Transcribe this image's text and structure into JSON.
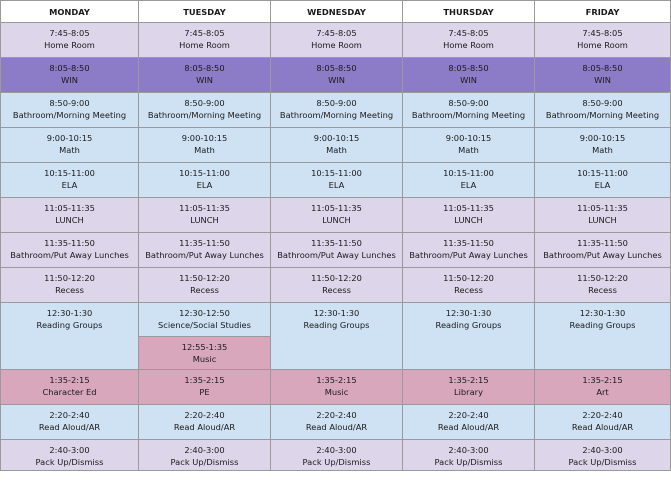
{
  "days": [
    "MONDAY",
    "TUESDAY",
    "WEDNESDAY",
    "THURSDAY",
    "FRIDAY"
  ],
  "rows": [
    {
      "key": "r0",
      "class": "lav",
      "cells": [
        [
          "7:45-8:05",
          "Home Room"
        ],
        [
          "7:45-8:05",
          "Home Room"
        ],
        [
          "7:45-8:05",
          "Home Room"
        ],
        [
          "7:45-8:05",
          "Home Room"
        ],
        [
          "7:45-8:05",
          "Home Room"
        ]
      ]
    },
    {
      "key": "r1",
      "class": "win",
      "cells": [
        [
          "8:05-8:50",
          "WIN"
        ],
        [
          "8:05-8:50",
          "WIN"
        ],
        [
          "8:05-8:50",
          "WIN"
        ],
        [
          "8:05-8:50",
          "WIN"
        ],
        [
          "8:05-8:50",
          "WIN"
        ]
      ]
    },
    {
      "key": "r2",
      "class": "blue",
      "cells": [
        [
          "8:50-9:00",
          "Bathroom/Morning Meeting"
        ],
        [
          "8:50-9:00",
          "Bathroom/Morning Meeting"
        ],
        [
          "8:50-9:00",
          "Bathroom/Morning Meeting"
        ],
        [
          "8:50-9:00",
          "Bathroom/Morning Meeting"
        ],
        [
          "8:50-9:00",
          "Bathroom/Morning Meeting"
        ]
      ]
    },
    {
      "key": "r3",
      "class": "blue",
      "cells": [
        [
          "9:00-10:15",
          "Math"
        ],
        [
          "9:00-10:15",
          "Math"
        ],
        [
          "9:00-10:15",
          "Math"
        ],
        [
          "9:00-10:15",
          "Math"
        ],
        [
          "9:00-10:15",
          "Math"
        ]
      ]
    },
    {
      "key": "r4",
      "class": "blue",
      "cells": [
        [
          "10:15-11:00",
          "ELA"
        ],
        [
          "10:15-11:00",
          "ELA"
        ],
        [
          "10:15-11:00",
          "ELA"
        ],
        [
          "10:15-11:00",
          "ELA"
        ],
        [
          "10:15-11:00",
          "ELA"
        ]
      ]
    },
    {
      "key": "r5",
      "class": "lav",
      "cells": [
        [
          "11:05-11:35",
          "LUNCH"
        ],
        [
          "11:05-11:35",
          "LUNCH"
        ],
        [
          "11:05-11:35",
          "LUNCH"
        ],
        [
          "11:05-11:35",
          "LUNCH"
        ],
        [
          "11:05-11:35",
          "LUNCH"
        ]
      ]
    },
    {
      "key": "r6",
      "class": "lav",
      "cells": [
        [
          "11:35-11:50",
          "Bathroom/Put Away Lunches"
        ],
        [
          "11:35-11:50",
          "Bathroom/Put Away Lunches"
        ],
        [
          "11:35-11:50",
          "Bathroom/Put Away Lunches"
        ],
        [
          "11:35-11:50",
          "Bathroom/Put Away Lunches"
        ],
        [
          "11:35-11:50",
          "Bathroom/Put Away Lunches"
        ]
      ]
    },
    {
      "key": "r7",
      "class": "lav",
      "cells": [
        [
          "11:50-12:20",
          "Recess"
        ],
        [
          "11:50-12:20",
          "Recess"
        ],
        [
          "11:50-12:20",
          "Recess"
        ],
        [
          "11:50-12:20",
          "Recess"
        ],
        [
          "11:50-12:20",
          "Recess"
        ]
      ]
    }
  ],
  "reading": {
    "monday": [
      "12:30-1:30",
      "Reading Groups"
    ],
    "tuesday_a": [
      "12:30-12:50",
      "Science/Social Studies"
    ],
    "tuesday_b": [
      "12:55-1:35",
      "Music"
    ],
    "wednesday": [
      "12:30-1:30",
      "Reading Groups"
    ],
    "thursday": [
      "12:30-1:30",
      "Reading Groups"
    ],
    "friday": [
      "12:30-1:30",
      "Reading Groups"
    ]
  },
  "specials": {
    "key": "r9",
    "class": "pink",
    "cells": [
      [
        "1:35-2:15",
        "Character Ed"
      ],
      [
        "1:35-2:15",
        "PE"
      ],
      [
        "1:35-2:15",
        "Music"
      ],
      [
        "1:35-2:15",
        "Library"
      ],
      [
        "1:35-2:15",
        "Art"
      ]
    ]
  },
  "readaloud": {
    "key": "r10",
    "class": "blue",
    "cells": [
      [
        "2:20-2:40",
        "Read Aloud/AR"
      ],
      [
        "2:20-2:40",
        "Read Aloud/AR"
      ],
      [
        "2:20-2:40",
        "Read Aloud/AR"
      ],
      [
        "2:20-2:40",
        "Read Aloud/AR"
      ],
      [
        "2:20-2:40",
        "Read Aloud/AR"
      ]
    ]
  },
  "dismiss": {
    "key": "r11",
    "class": "lav",
    "cells": [
      [
        "2:40-3:00",
        "Pack Up/Dismiss"
      ],
      [
        "2:40-3:00",
        "Pack Up/Dismiss"
      ],
      [
        "2:40-3:00",
        "Pack Up/Dismiss"
      ],
      [
        "2:40-3:00",
        "Pack Up/Dismiss"
      ],
      [
        "2:40-3:00",
        "Pack Up/Dismiss"
      ]
    ]
  }
}
